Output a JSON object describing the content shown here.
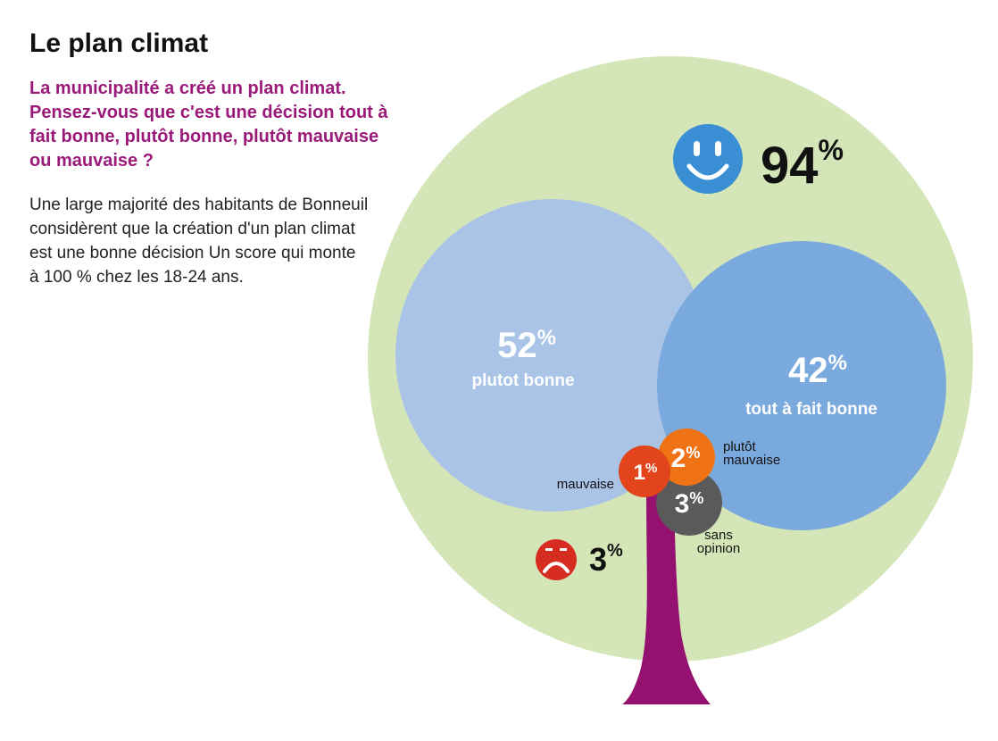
{
  "title": "Le plan climat",
  "question": "La municipalité a créé un plan climat. Pensez-vous que c'est une décision tout à fait bonne, plutôt bonne, plutôt mauvaise ou mauvaise ?",
  "body": "Une large majorité des habitants de Bonneuil considèrent que la création d'un plan climat est une bonne décision Un score qui monte à 100 % chez les 18-24 ans.",
  "colors": {
    "canopy": "#d4e6b8",
    "plutot_bonne": "#a9c4e6",
    "tout_a_fait_bonne": "#7aaadd",
    "plutot_mauvaise": "#ef7314",
    "mauvaise": "#e2451b",
    "sans_opinion": "#5a5a5a",
    "trunk": "#951170",
    "positive_icon": "#3a8fd4",
    "negative_icon": "#d62d20"
  },
  "chart_data": {
    "type": "bubble",
    "unit": "%",
    "categories": [
      "plutot bonne",
      "tout à fait bonne",
      "plutôt mauvaise",
      "mauvaise",
      "sans opinion"
    ],
    "values": [
      52,
      42,
      2,
      1,
      3
    ],
    "groups": [
      {
        "icon": "smiley-icon",
        "value": 94
      },
      {
        "icon": "sad-face-icon",
        "value": 3
      }
    ]
  }
}
